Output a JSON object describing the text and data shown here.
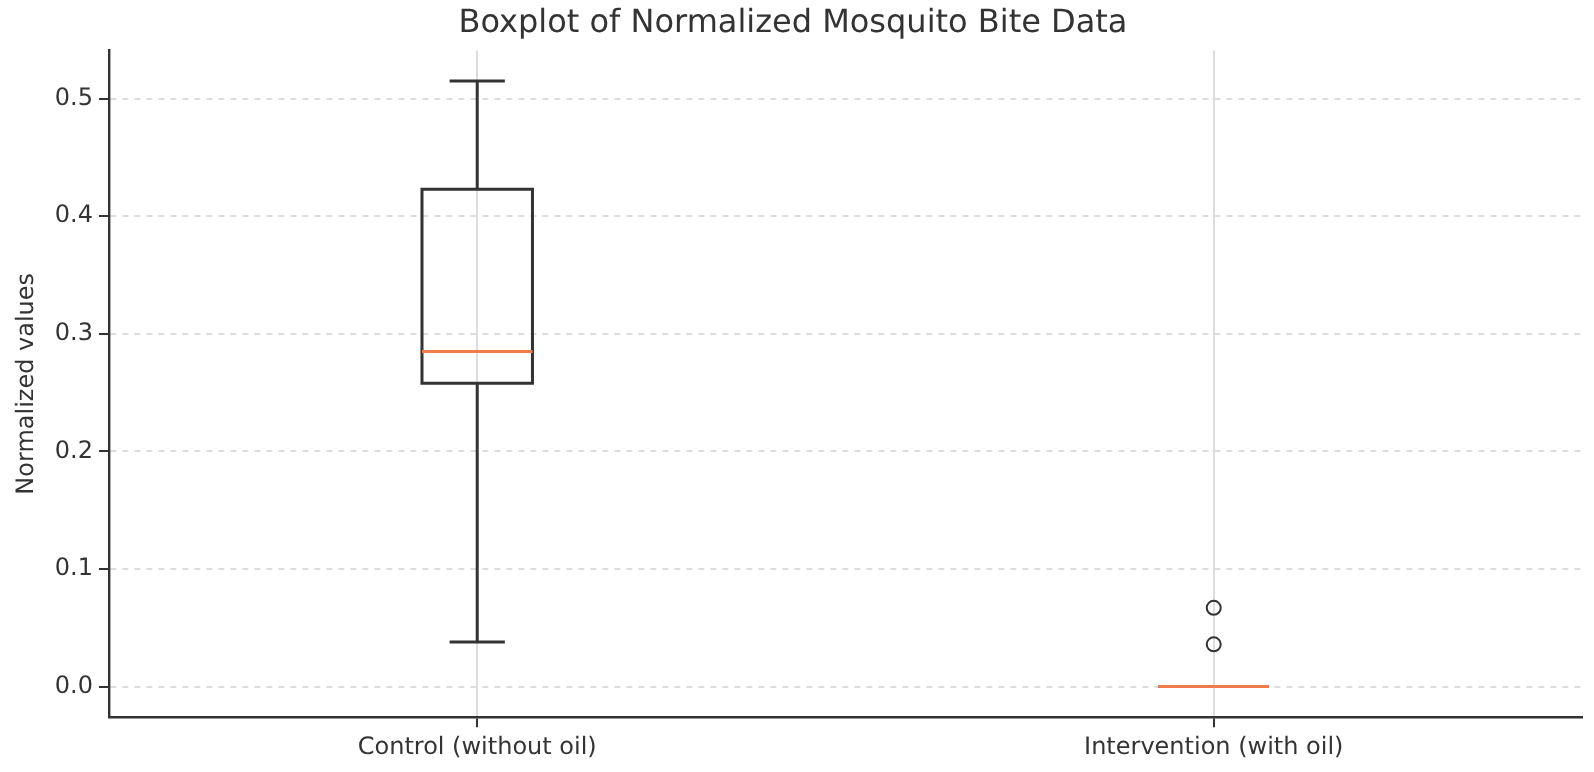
{
  "chart_data": {
    "type": "box",
    "title": "Boxplot of Normalized Mosquito Bite Data",
    "ylabel": "Normalized values",
    "categories": [
      "Control (without oil)",
      "Intervention (with oil)"
    ],
    "series": [
      {
        "color": "#333333",
        "boxes": [
          {
            "low": 0.038,
            "q1": 0.258,
            "median": 0.285,
            "q3": 0.423,
            "high": 0.515
          },
          {
            "low": 0,
            "q1": 0,
            "median": 0,
            "q3": 0,
            "high": 0,
            "outliers": [
              0.067,
              0.036
            ]
          }
        ]
      }
    ],
    "ylim": [
      -0.026,
      0.541
    ],
    "yticks": [
      {
        "value": 0,
        "label": "0.0"
      },
      {
        "value": 0.1,
        "label": "0.1"
      },
      {
        "value": 0.2,
        "label": "0.2"
      },
      {
        "value": 0.3,
        "label": "0.3"
      },
      {
        "value": 0.4,
        "label": "0.4"
      },
      {
        "value": 0.5,
        "label": "0.5"
      }
    ],
    "grid": true
  }
}
